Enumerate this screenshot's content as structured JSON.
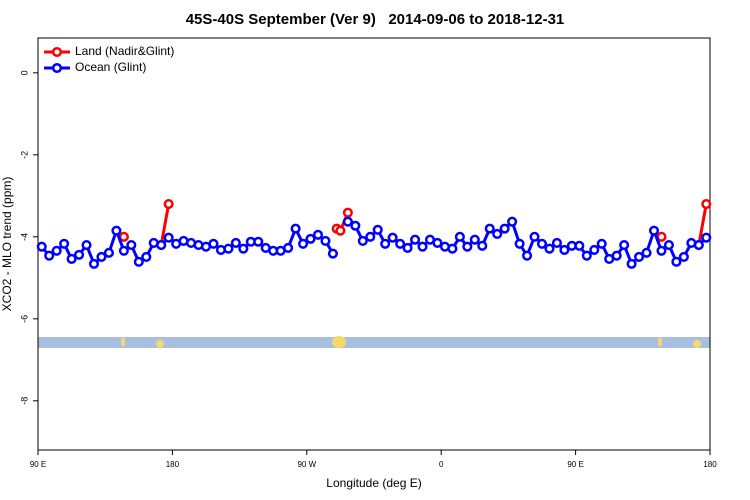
{
  "chart_data": {
    "type": "line",
    "title": "45S-40S September (Ver 9)   2014-09-06 to 2018-12-31",
    "x_label": "Longitude (deg E)",
    "y_label": "XCO2 - MLO trend (ppm)",
    "xlim": [
      90,
      540
    ],
    "ylim": [
      -9.2,
      0.85
    ],
    "xticks": [
      {
        "value": 90,
        "label": "90 E"
      },
      {
        "value": 180,
        "label": "180"
      },
      {
        "value": 270,
        "label": "90 W"
      },
      {
        "value": 360,
        "label": "0"
      },
      {
        "value": 450,
        "label": "90 E"
      },
      {
        "value": 540,
        "label": "180"
      }
    ],
    "yticks": [
      0,
      -2,
      -4,
      -6,
      -8
    ],
    "legend": "top-left",
    "series": [
      {
        "name": "Land (Nadir&Glint)",
        "color": "#ff0000",
        "x": [
          147.5,
          150,
          172.5,
          177.5,
          285,
          290,
          292.5,
          297.5,
          300,
          507.5,
          510,
          532.5,
          537.5
        ],
        "values": [
          -4.0,
          null,
          -4.2,
          -3.2,
          null,
          -3.8,
          -3.85,
          -3.41,
          null,
          -4.0,
          null,
          -4.2,
          -3.2
        ]
      },
      {
        "name": "Ocean (Glint)",
        "color": "#0000ff",
        "x": [
          92.5,
          97.5,
          102.5,
          107.5,
          112.5,
          117.5,
          122.5,
          127.5,
          132.5,
          137.5,
          142.5,
          147.5,
          152.5,
          157.5,
          162.5,
          167.5,
          172.5,
          177.5,
          182.5,
          187.5,
          192.5,
          197.5,
          202.5,
          207.5,
          212.5,
          217.5,
          222.5,
          227.5,
          232.5,
          237.5,
          242.5,
          247.5,
          252.5,
          257.5,
          262.5,
          267.5,
          272.5,
          277.5,
          282.5,
          287.5,
          292.5,
          297.5,
          302.5,
          307.5,
          312.5,
          317.5,
          322.5,
          327.5,
          332.5,
          337.5,
          342.5,
          347.5,
          352.5,
          357.5,
          362.5,
          367.5,
          372.5,
          377.5,
          382.5,
          387.5,
          392.5,
          397.5,
          402.5,
          407.5,
          412.5,
          417.5,
          422.5,
          427.5,
          432.5,
          437.5,
          442.5,
          447.5,
          452.5,
          457.5,
          462.5,
          467.5,
          472.5,
          477.5,
          482.5,
          487.5,
          492.5,
          497.5,
          502.5,
          507.5,
          512.5,
          517.5,
          522.5,
          527.5,
          532.5,
          537.5
        ],
        "values": [
          -4.24,
          -4.46,
          -4.34,
          -4.17,
          -4.54,
          -4.44,
          -4.2,
          -4.66,
          -4.49,
          -4.39,
          -3.85,
          -4.34,
          -4.2,
          -4.61,
          -4.49,
          -4.15,
          -4.2,
          -4.02,
          -4.17,
          -4.1,
          -4.15,
          -4.2,
          -4.24,
          -4.17,
          -4.32,
          -4.29,
          -4.15,
          -4.29,
          -4.12,
          -4.12,
          -4.27,
          -4.34,
          -4.34,
          -4.27,
          -3.8,
          -4.17,
          -4.05,
          -3.95,
          -4.1,
          -4.41,
          null,
          -3.63,
          -3.73,
          -4.1,
          -4.0,
          -3.83,
          -4.17,
          -4.02,
          -4.17,
          -4.27,
          -4.07,
          -4.24,
          -4.07,
          -4.15,
          -4.24,
          -4.29,
          -4.0,
          -4.24,
          -4.07,
          -4.22,
          -3.8,
          -3.93,
          -3.8,
          -3.63,
          -4.17,
          -4.46,
          -4.0,
          -4.17,
          -4.29,
          -4.15,
          -4.32,
          -4.22,
          -4.22,
          -4.46,
          -4.32,
          -4.17,
          -4.54,
          -4.46,
          -4.2,
          -4.66,
          -4.49,
          -4.39,
          -3.85,
          -4.34,
          -4.2,
          -4.61,
          -4.49,
          -4.15,
          -4.2,
          -4.02
        ]
      }
    ]
  }
}
